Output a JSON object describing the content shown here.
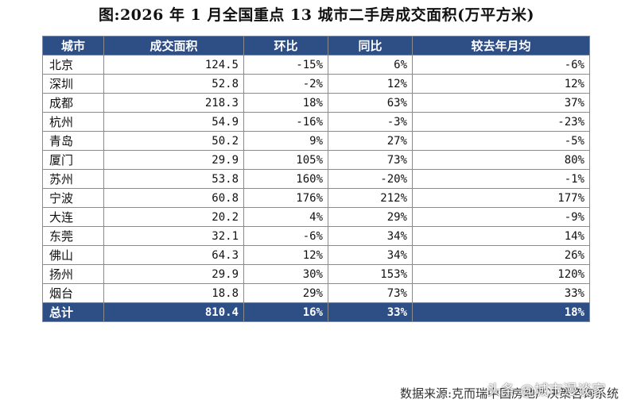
{
  "title": "图:2026 年 1 月全国重点 13 城市二手房成交面积(万平方米)",
  "headers": [
    "城市",
    "成交面积",
    "环比",
    "同比",
    "较去年月均"
  ],
  "rows": [
    {
      "city": "北京",
      "area": "124.5",
      "mom": "-15%",
      "yoy": "6%",
      "vs_avg": "-6%"
    },
    {
      "city": "深圳",
      "area": "52.8",
      "mom": "-2%",
      "yoy": "12%",
      "vs_avg": "12%"
    },
    {
      "city": "成都",
      "area": "218.3",
      "mom": "18%",
      "yoy": "63%",
      "vs_avg": "37%"
    },
    {
      "city": "杭州",
      "area": "54.9",
      "mom": "-16%",
      "yoy": "-3%",
      "vs_avg": "-23%"
    },
    {
      "city": "青岛",
      "area": "50.2",
      "mom": "9%",
      "yoy": "27%",
      "vs_avg": "-5%"
    },
    {
      "city": "厦门",
      "area": "29.9",
      "mom": "105%",
      "yoy": "73%",
      "vs_avg": "80%"
    },
    {
      "city": "苏州",
      "area": "53.8",
      "mom": "160%",
      "yoy": "-20%",
      "vs_avg": "-1%"
    },
    {
      "city": "宁波",
      "area": "60.8",
      "mom": "176%",
      "yoy": "212%",
      "vs_avg": "177%"
    },
    {
      "city": "大连",
      "area": "20.2",
      "mom": "4%",
      "yoy": "29%",
      "vs_avg": "-9%"
    },
    {
      "city": "东莞",
      "area": "32.1",
      "mom": "-6%",
      "yoy": "34%",
      "vs_avg": "14%"
    },
    {
      "city": "佛山",
      "area": "64.3",
      "mom": "12%",
      "yoy": "34%",
      "vs_avg": "26%"
    },
    {
      "city": "扬州",
      "area": "29.9",
      "mom": "30%",
      "yoy": "153%",
      "vs_avg": "120%"
    },
    {
      "city": "烟台",
      "area": "18.8",
      "mom": "29%",
      "yoy": "73%",
      "vs_avg": "33%"
    }
  ],
  "total": {
    "city": "总计",
    "area": "810.4",
    "mom": "16%",
    "yoy": "33%",
    "vs_avg": "18%"
  },
  "source": "数据来源:克而瑞中国房地产决策咨询系统",
  "watermark": "头条 @城市漫谈家",
  "colors": {
    "header_bg": "#2e4e86",
    "header_text": "#ffffff",
    "border": "#8a8a8a"
  }
}
